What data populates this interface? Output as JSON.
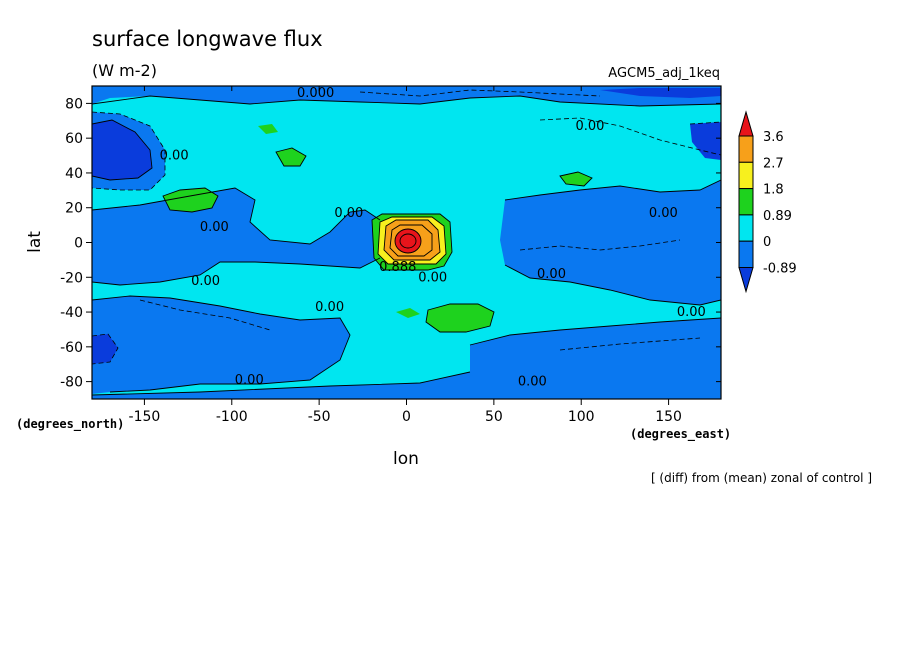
{
  "chart_data": {
    "type": "heatmap",
    "title": "surface longwave flux",
    "subtitle": "(W m-2)",
    "experiment": "AGCM5_adj_1keq",
    "xlabel": "lon",
    "ylabel": "lat",
    "xunits": "(degrees_east)",
    "yunits": "(degrees_north)",
    "note": "[ (diff) from (mean) zonal of control ]",
    "xlim": [
      -180,
      180
    ],
    "ylim": [
      -90,
      90
    ],
    "xticks": [
      "-150",
      "-100",
      "-50",
      "0",
      "50",
      "100",
      "150"
    ],
    "xtick_values": [
      -150,
      -100,
      -50,
      0,
      50,
      100,
      150
    ],
    "yticks": [
      "80",
      "60",
      "40",
      "20",
      "0",
      "-20",
      "-40",
      "-60",
      "-80"
    ],
    "ytick_values": [
      80,
      60,
      40,
      20,
      0,
      -20,
      -40,
      -60,
      -80
    ],
    "colorbar": {
      "levels": [
        "3.6",
        "2.7",
        "1.8",
        "0.89",
        "0",
        "-0.89"
      ],
      "level_values": [
        3.6,
        2.7,
        1.8,
        0.89,
        0,
        -0.89
      ],
      "colors": [
        "#e8141b",
        "#f7a01a",
        "#f7f01e",
        "#1ed21e",
        "#00e6f0",
        "#0a78f0",
        "#0a3cdc"
      ]
    },
    "contour_labels": [
      {
        "text": "0.000",
        "lon": -52,
        "lat": 86
      },
      {
        "text": "0.00",
        "lon": 105,
        "lat": 67
      },
      {
        "text": "0.00",
        "lon": -133,
        "lat": 50
      },
      {
        "text": "0.00",
        "lon": -33,
        "lat": 17
      },
      {
        "text": "0.00",
        "lon": -110,
        "lat": 9
      },
      {
        "text": "0.00",
        "lon": 147,
        "lat": 17
      },
      {
        "text": "0.00",
        "lon": -115,
        "lat": -22
      },
      {
        "text": "0.888",
        "lon": -5,
        "lat": -14
      },
      {
        "text": "0.00",
        "lon": 15,
        "lat": -20
      },
      {
        "text": "0.00",
        "lon": 83,
        "lat": -18
      },
      {
        "text": "0.00",
        "lon": -44,
        "lat": -37
      },
      {
        "text": "0.00",
        "lon": 163,
        "lat": -40
      },
      {
        "text": "0.00",
        "lon": -90,
        "lat": -79
      },
      {
        "text": "0.00",
        "lon": 72,
        "lat": -80
      }
    ]
  }
}
